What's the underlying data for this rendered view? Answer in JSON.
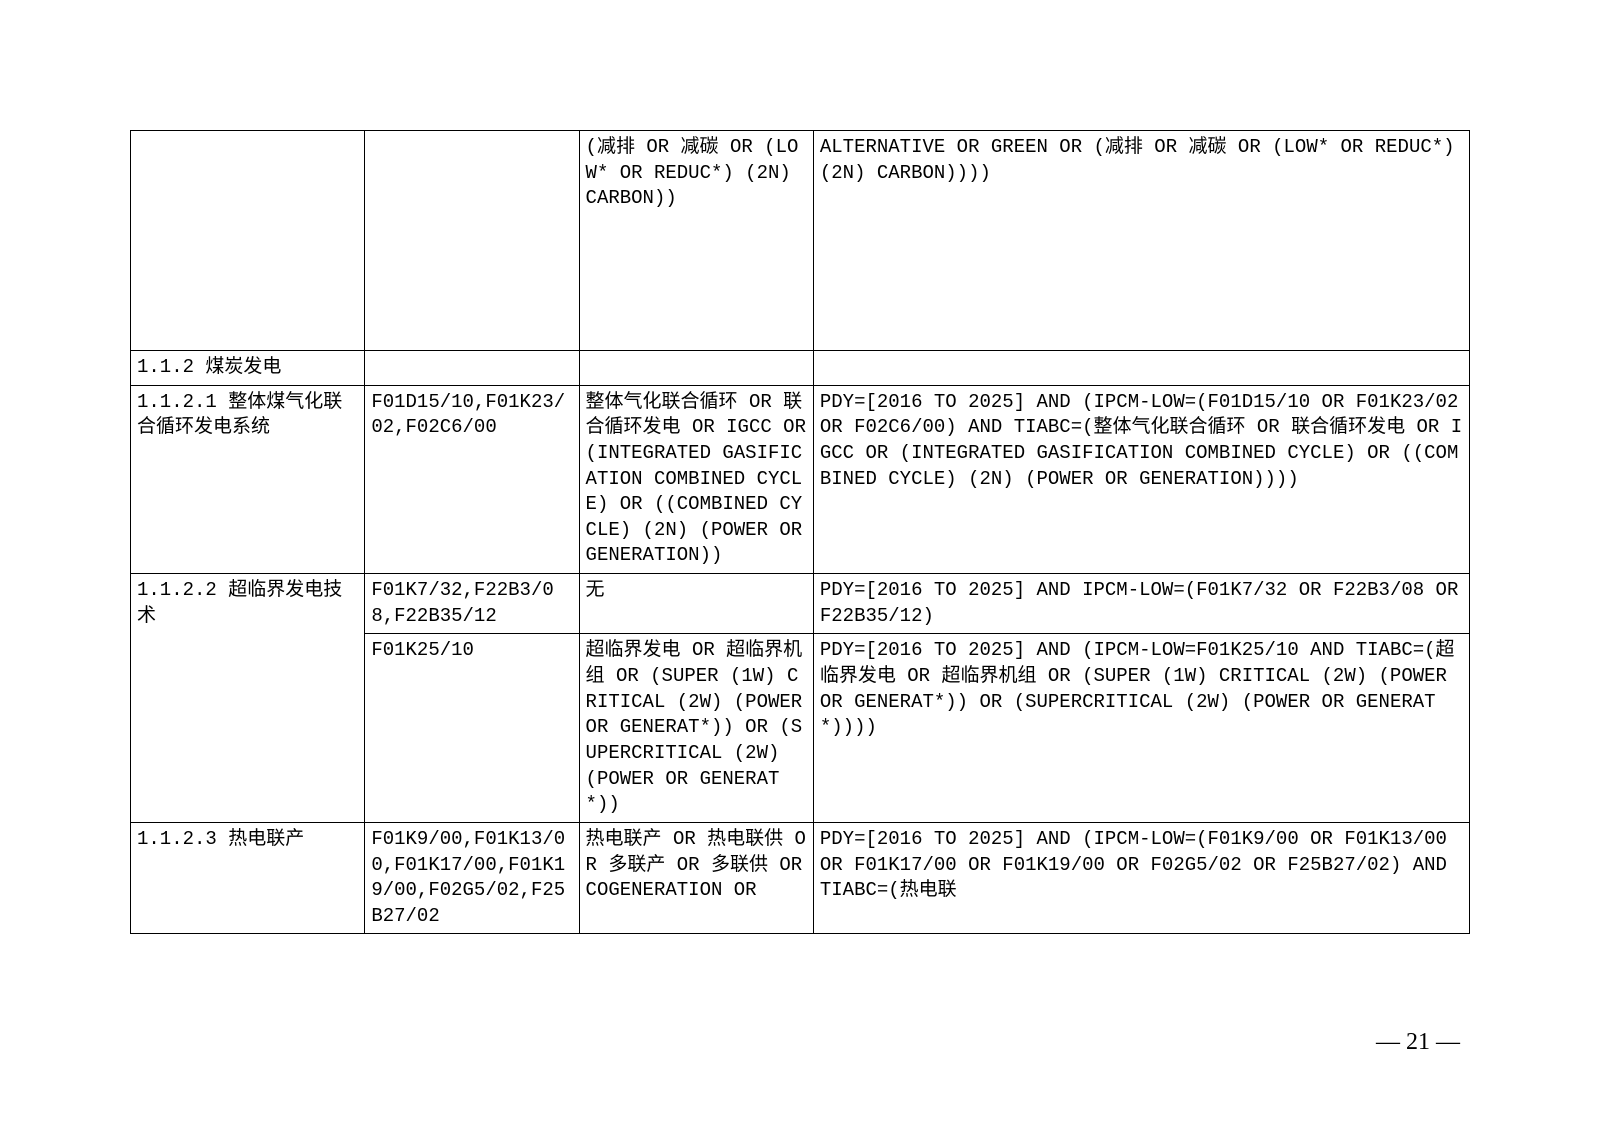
{
  "table": {
    "col_widths": [
      "17.5%",
      "16%",
      "17.5%",
      "49%"
    ],
    "rows": [
      {
        "c1": "",
        "c2": "",
        "c3": "(减排 OR 减碳 OR (LOW* OR REDUC*) (2N) CARBON))",
        "c4": "ALTERNATIVE OR GREEN OR (减排 OR 减碳 OR (LOW* OR REDUC*)  (2N)  CARBON))))",
        "tall": true
      },
      {
        "c1": "1.1.2 煤炭发电",
        "c2": "",
        "c3": "",
        "c4": ""
      },
      {
        "c1": "1.1.2.1 整体煤气化联合循环发电系统",
        "c2": "F01D15/10,F01K23/02,F02C6/00",
        "c3": "整体气化联合循环 OR 联合循环发电 OR IGCC OR (INTEGRATED GASIFICATION COMBINED CYCLE) OR ((COMBINED CYCLE)  (2N)  (POWER OR GENERATION))",
        "c4": "PDY=[2016 TO 2025] AND (IPCM-LOW=(F01D15/10 OR F01K23/02 OR F02C6/00)  AND TIABC=(整体气化联合循环 OR 联合循环发电 OR IGCC OR (INTEGRATED GASIFICATION COMBINED CYCLE) OR ((COMBINED CYCLE)  (2N)  (POWER OR GENERATION))))"
      },
      {
        "c1": "1.1.2.2 超临界发电技术",
        "c1_rowspan": 2,
        "c2": "F01K7/32,F22B3/08,F22B35/12",
        "c3": "无",
        "c4": "PDY=[2016 TO 2025] AND IPCM-LOW=(F01K7/32 OR F22B3/08 OR F22B35/12)"
      },
      {
        "c2": "F01K25/10",
        "c3": "超临界发电 OR 超临界机组 OR (SUPER (1W) CRITICAL (2W) (POWER OR GENERAT*)) OR (SUPERCRITICAL (2W) (POWER OR GENERAT*))",
        "c4": "PDY=[2016 TO 2025] AND (IPCM-LOW=F01K25/10 AND TIABC=(超临界发电 OR 超临界机组 OR (SUPER (1W) CRITICAL (2W) (POWER OR GENERAT*)) OR (SUPERCRITICAL (2W) (POWER OR GENERAT*))))"
      },
      {
        "c1": "1.1.2.3 热电联产",
        "c2": "F01K9/00,F01K13/00,F01K17/00,F01K19/00,F02G5/02,F25B27/02",
        "c3": "热电联产 OR 热电联供 OR 多联产 OR 多联供 OR COGENERATION OR",
        "c4": "PDY=[2016 TO 2025] AND (IPCM-LOW=(F01K9/00 OR F01K13/00 OR F01K17/00 OR F01K19/00 OR F02G5/02 OR F25B27/02)  AND TIABC=(热电联"
      }
    ]
  },
  "page_number": "— 21 —"
}
